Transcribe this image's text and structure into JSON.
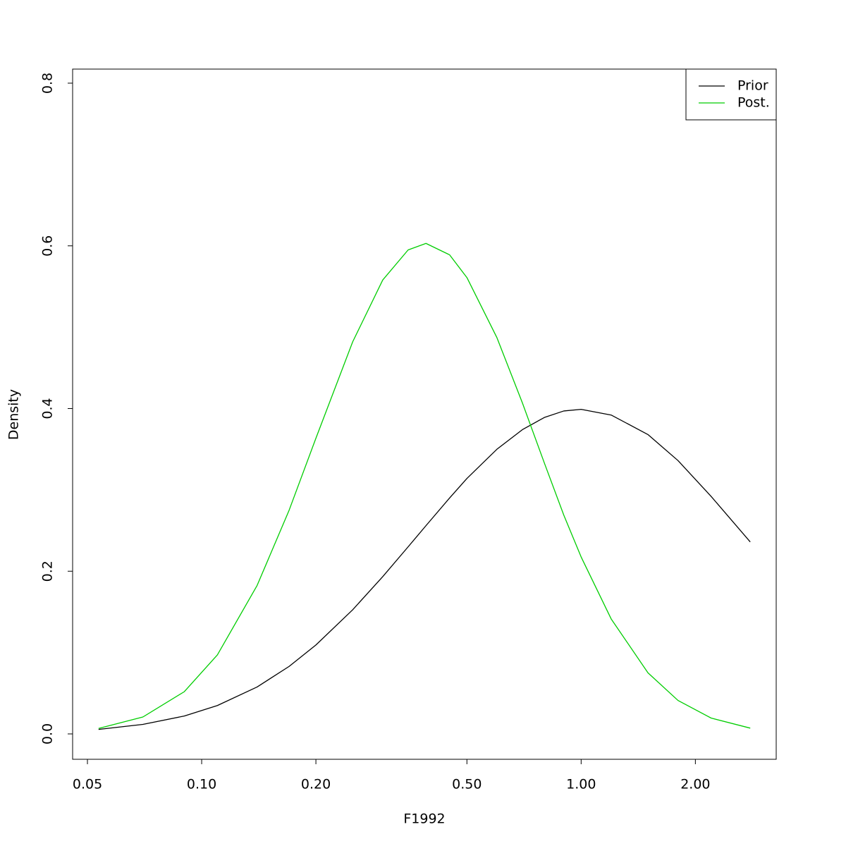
{
  "chart_data": {
    "type": "line",
    "x_label": "F1992",
    "y_label": "Density",
    "x_log": true,
    "x": [
      0.0535,
      0.07,
      0.09,
      0.11,
      0.14,
      0.17,
      0.2,
      0.25,
      0.3,
      0.35,
      0.39,
      0.45,
      0.5,
      0.6,
      0.7,
      0.8,
      0.9,
      1.0,
      1.2,
      1.5,
      1.8,
      2.2,
      2.79
    ],
    "series": [
      {
        "name": "Prior",
        "color": "#000000",
        "values": [
          0.0055,
          0.0117,
          0.022,
          0.0349,
          0.0577,
          0.083,
          0.1093,
          0.1526,
          0.1933,
          0.23,
          0.256,
          0.29,
          0.314,
          0.35,
          0.374,
          0.389,
          0.397,
          0.399,
          0.392,
          0.368,
          0.336,
          0.292,
          0.236
        ]
      },
      {
        "name": "Post.",
        "color": "#00cd00",
        "values": [
          0.0067,
          0.0208,
          0.0519,
          0.0971,
          0.1825,
          0.275,
          0.3635,
          0.482,
          0.558,
          0.595,
          0.603,
          0.589,
          0.561,
          0.487,
          0.407,
          0.333,
          0.269,
          0.2175,
          0.1413,
          0.0751,
          0.0411,
          0.0195,
          0.0071
        ]
      }
    ],
    "xlim": [
      0.0457,
      3.266
    ],
    "xticks": [
      {
        "value": 0.05,
        "label": "0.05"
      },
      {
        "value": 0.1,
        "label": "0.10"
      },
      {
        "value": 0.2,
        "label": "0.20"
      },
      {
        "value": 0.5,
        "label": "0.50"
      },
      {
        "value": 1,
        "label": "1.00"
      },
      {
        "value": 2,
        "label": "2.00"
      }
    ],
    "ylim": [
      -0.0312,
      0.8173
    ],
    "yticks": [
      {
        "value": 0,
        "label": "0.0"
      },
      0.2,
      0.4,
      0.6,
      0.8
    ],
    "legend": "top-right"
  }
}
